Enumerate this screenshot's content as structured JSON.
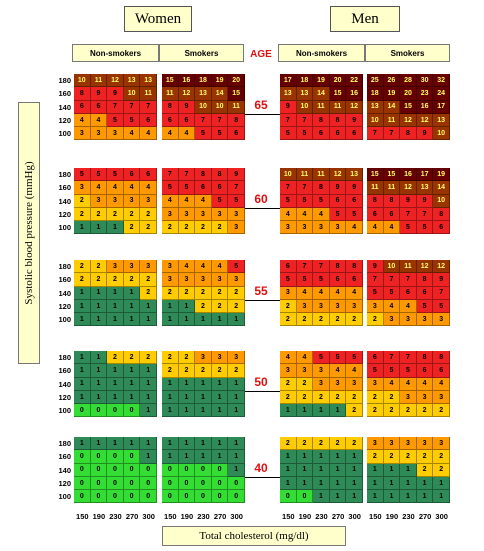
{
  "headers": {
    "women": "Women",
    "men": "Men",
    "non_smokers": "Non-smokers",
    "smokers": "Smokers",
    "age_label": "AGE"
  },
  "axis": {
    "ylabel": "Systolic blood pressure (mmHg)",
    "xlabel": "Total cholesterol (mg/dl)"
  },
  "colors": {
    "header_bg": "#ffffcc",
    "age_text": "#e01010",
    "score_0": "#33dd33",
    "score_1": "#2e8b57",
    "score_2": "#ffcc00",
    "score_3_4": "#ff9900",
    "score_5_9": "#ee2222",
    "score_10_14": "#993300",
    "score_15_plus": "#660000"
  },
  "chart_data": {
    "type": "heatmap",
    "title": "",
    "xlabel": "Total cholesterol (mg/dl)",
    "ylabel": "Systolic blood pressure (mmHg)",
    "cholesterol": [
      "150",
      "190",
      "230",
      "270",
      "300"
    ],
    "blood_pressure": [
      "180",
      "160",
      "140",
      "120",
      "100"
    ],
    "ages": [
      "65",
      "60",
      "55",
      "50",
      "40"
    ],
    "groups": [
      "Women Non-smokers",
      "Women Smokers",
      "Men Non-smokers",
      "Men Smokers"
    ],
    "values": {
      "65": [
        [
          [
            10,
            11,
            12,
            13,
            13
          ],
          [
            8,
            9,
            9,
            10,
            11
          ],
          [
            6,
            6,
            7,
            7,
            7
          ],
          [
            4,
            4,
            5,
            5,
            6
          ],
          [
            3,
            3,
            3,
            4,
            4
          ]
        ],
        [
          [
            15,
            16,
            18,
            19,
            20
          ],
          [
            11,
            12,
            13,
            14,
            15
          ],
          [
            8,
            9,
            10,
            10,
            11
          ],
          [
            6,
            6,
            7,
            7,
            8
          ],
          [
            4,
            4,
            5,
            5,
            6
          ]
        ],
        [
          [
            17,
            18,
            19,
            20,
            22
          ],
          [
            13,
            13,
            14,
            15,
            16
          ],
          [
            9,
            10,
            11,
            11,
            12
          ],
          [
            7,
            7,
            8,
            8,
            9
          ],
          [
            5,
            5,
            6,
            6,
            6
          ]
        ],
        [
          [
            25,
            26,
            28,
            30,
            32
          ],
          [
            18,
            19,
            20,
            23,
            24
          ],
          [
            13,
            14,
            15,
            16,
            17
          ],
          [
            10,
            11,
            12,
            12,
            13
          ],
          [
            7,
            7,
            8,
            9,
            10
          ]
        ]
      ],
      "60": [
        [
          [
            5,
            5,
            5,
            6,
            6
          ],
          [
            3,
            4,
            4,
            4,
            4
          ],
          [
            2,
            3,
            3,
            3,
            3
          ],
          [
            2,
            2,
            2,
            2,
            2
          ],
          [
            1,
            1,
            1,
            2,
            2
          ]
        ],
        [
          [
            7,
            7,
            8,
            8,
            9
          ],
          [
            5,
            5,
            6,
            6,
            7
          ],
          [
            4,
            4,
            4,
            5,
            5
          ],
          [
            3,
            3,
            3,
            3,
            3
          ],
          [
            2,
            2,
            2,
            2,
            3
          ]
        ],
        [
          [
            10,
            11,
            11,
            12,
            13
          ],
          [
            7,
            7,
            8,
            9,
            9
          ],
          [
            5,
            5,
            5,
            6,
            6
          ],
          [
            4,
            4,
            4,
            5,
            5
          ],
          [
            3,
            3,
            3,
            3,
            4
          ]
        ],
        [
          [
            15,
            15,
            16,
            17,
            19
          ],
          [
            11,
            11,
            12,
            13,
            14
          ],
          [
            8,
            8,
            9,
            9,
            10
          ],
          [
            6,
            6,
            7,
            7,
            8
          ],
          [
            4,
            4,
            5,
            5,
            6
          ]
        ]
      ],
      "55": [
        [
          [
            2,
            2,
            3,
            3,
            3
          ],
          [
            2,
            2,
            2,
            2,
            2
          ],
          [
            1,
            1,
            1,
            1,
            2
          ],
          [
            1,
            1,
            1,
            1,
            1
          ],
          [
            1,
            1,
            1,
            1,
            1
          ]
        ],
        [
          [
            3,
            4,
            4,
            4,
            5
          ],
          [
            3,
            3,
            3,
            3,
            3
          ],
          [
            2,
            2,
            2,
            2,
            2
          ],
          [
            1,
            1,
            2,
            2,
            2
          ],
          [
            1,
            1,
            1,
            1,
            1
          ]
        ],
        [
          [
            6,
            7,
            7,
            8,
            8
          ],
          [
            5,
            5,
            5,
            6,
            6
          ],
          [
            3,
            4,
            4,
            4,
            4
          ],
          [
            2,
            3,
            3,
            3,
            3
          ],
          [
            2,
            2,
            2,
            2,
            2
          ]
        ],
        [
          [
            9,
            10,
            11,
            12,
            12
          ],
          [
            7,
            7,
            7,
            8,
            9
          ],
          [
            5,
            5,
            6,
            6,
            7
          ],
          [
            3,
            4,
            4,
            5,
            5
          ],
          [
            2,
            3,
            3,
            3,
            3
          ]
        ]
      ],
      "50": [
        [
          [
            1,
            1,
            2,
            2,
            2
          ],
          [
            1,
            1,
            1,
            1,
            1
          ],
          [
            1,
            1,
            1,
            1,
            1
          ],
          [
            1,
            1,
            1,
            1,
            1
          ],
          [
            0,
            0,
            0,
            0,
            1
          ]
        ],
        [
          [
            2,
            2,
            3,
            3,
            3
          ],
          [
            2,
            2,
            2,
            2,
            2
          ],
          [
            1,
            1,
            1,
            1,
            1
          ],
          [
            1,
            1,
            1,
            1,
            1
          ],
          [
            1,
            1,
            1,
            1,
            1
          ]
        ],
        [
          [
            4,
            4,
            5,
            5,
            5
          ],
          [
            3,
            3,
            3,
            4,
            4
          ],
          [
            2,
            2,
            3,
            3,
            3
          ],
          [
            2,
            2,
            2,
            2,
            2
          ],
          [
            1,
            1,
            1,
            1,
            2
          ]
        ],
        [
          [
            6,
            7,
            7,
            8,
            8
          ],
          [
            5,
            5,
            5,
            6,
            6
          ],
          [
            3,
            4,
            4,
            4,
            4
          ],
          [
            2,
            2,
            3,
            3,
            3
          ],
          [
            2,
            2,
            2,
            2,
            2
          ]
        ]
      ],
      "40": [
        [
          [
            1,
            1,
            1,
            1,
            1
          ],
          [
            0,
            0,
            0,
            0,
            1
          ],
          [
            0,
            0,
            0,
            0,
            0
          ],
          [
            0,
            0,
            0,
            0,
            0
          ],
          [
            0,
            0,
            0,
            0,
            0
          ]
        ],
        [
          [
            1,
            1,
            1,
            1,
            1
          ],
          [
            1,
            1,
            1,
            1,
            1
          ],
          [
            0,
            0,
            0,
            0,
            1
          ],
          [
            0,
            0,
            0,
            0,
            0
          ],
          [
            0,
            0,
            0,
            0,
            0
          ]
        ],
        [
          [
            2,
            2,
            2,
            2,
            2
          ],
          [
            1,
            1,
            1,
            1,
            1
          ],
          [
            1,
            1,
            1,
            1,
            1
          ],
          [
            1,
            1,
            1,
            1,
            1
          ],
          [
            0,
            0,
            1,
            1,
            1
          ]
        ],
        [
          [
            3,
            3,
            3,
            3,
            3
          ],
          [
            2,
            2,
            2,
            2,
            2
          ],
          [
            1,
            1,
            1,
            2,
            2
          ],
          [
            1,
            1,
            1,
            1,
            1
          ],
          [
            1,
            1,
            1,
            1,
            1
          ]
        ]
      ]
    }
  }
}
